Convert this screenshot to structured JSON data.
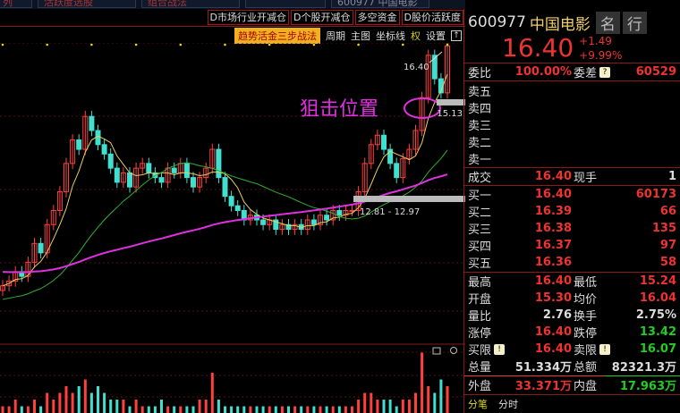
{
  "top_tabs": [
    "列",
    "活跃度选股",
    "组合战法",
    "",
    "600977 中国电影"
  ],
  "d_buttons": [
    "D市场行业开减仓",
    "D个股开减仓",
    "多空资金",
    "D股价活跃度"
  ],
  "toolbar": {
    "strategy": "趋势活金三步战法",
    "period": "周期",
    "main_chart": "主图",
    "axis": "坐标线",
    "right": "权",
    "settings": "设置",
    "expand": "↑"
  },
  "chart": {
    "annotation": "狙击位置",
    "high_label": "16.40",
    "level_label": "15.13",
    "range_label": "12.81 - 12.97",
    "closes": [
      11.3,
      11.4,
      11.6,
      11.5,
      11.8,
      12.2,
      12.0,
      12.6,
      12.9,
      13.3,
      13.9,
      14.4,
      14.2,
      14.9,
      14.6,
      14.3,
      14.1,
      13.8,
      13.5,
      13.7,
      13.4,
      13.8,
      13.9,
      13.7,
      13.6,
      13.5,
      13.8,
      13.7,
      13.9,
      13.6,
      13.4,
      13.6,
      13.8,
      14.2,
      13.6,
      13.2,
      13.0,
      12.9,
      12.7,
      12.8,
      12.7,
      12.6,
      12.7,
      12.5,
      12.6,
      12.5,
      12.6,
      12.5,
      12.7,
      12.6,
      12.8,
      12.7,
      12.9,
      12.8,
      12.9,
      12.9,
      13.3,
      13.9,
      14.3,
      14.5,
      14.2,
      13.9,
      13.6,
      14.0,
      14.2,
      14.6,
      15.3,
      16.2,
      15.7,
      15.4,
      16.4
    ],
    "volumes": [
      1,
      1,
      2,
      1,
      1,
      2,
      1,
      3,
      2,
      3,
      4,
      3,
      4,
      5,
      3,
      4,
      3,
      2,
      2,
      2,
      1,
      2,
      1,
      1,
      1,
      2,
      1,
      1,
      1,
      1,
      1,
      2,
      2,
      6,
      2,
      1,
      1,
      1,
      1,
      1,
      1,
      1,
      1,
      1,
      1,
      1,
      1,
      1,
      1,
      1,
      1,
      1,
      1,
      1,
      1,
      1,
      2,
      3,
      3,
      2,
      2,
      2,
      1,
      2,
      2,
      3,
      9,
      4,
      3,
      5,
      4
    ],
    "colors": {
      "up": "#ff4040",
      "down": "#40e0d0",
      "ma5": "#e8d060",
      "ma20": "#30b030",
      "ma60": "#e030e0"
    }
  },
  "quote": {
    "code": "600977",
    "name": "中国电影",
    "btn_name": "名",
    "btn_industry": "行",
    "price": "16.40",
    "change": "+1.49",
    "pct": "+9.99%",
    "weibi_label": "委比",
    "weibi": "100.00%",
    "weicha_label": "委差",
    "weicha": "60529",
    "asks": [
      "卖五",
      "卖四",
      "卖三",
      "卖二",
      "卖一"
    ],
    "deal_label": "成交",
    "deal": "16.40",
    "now_label": "现手",
    "now": "1",
    "bids": [
      {
        "l": "买一",
        "p": "16.40",
        "v": "60173"
      },
      {
        "l": "买二",
        "p": "16.39",
        "v": "66"
      },
      {
        "l": "买三",
        "p": "16.38",
        "v": "135"
      },
      {
        "l": "买四",
        "p": "16.37",
        "v": "97"
      },
      {
        "l": "买五",
        "p": "16.36",
        "v": "58"
      }
    ],
    "stats": [
      {
        "l1": "最高",
        "v1": "16.40",
        "l2": "最低",
        "v2": "15.24"
      },
      {
        "l1": "开盘",
        "v1": "15.30",
        "l2": "均价",
        "v2": "16.04"
      },
      {
        "l1": "量比",
        "v1": "2.76",
        "l2": "换手",
        "v2": "2.75%"
      },
      {
        "l1": "涨停",
        "v1": "16.40",
        "l2": "跌停",
        "v2": "13.42"
      },
      {
        "l1": "买限",
        "v1": "16.40",
        "l2": "卖限",
        "v2": "16.07"
      },
      {
        "l1": "总量",
        "v1": "51.334万",
        "l2": "总额",
        "v2": "82321.3万"
      }
    ],
    "outer_label": "外盘",
    "outer": "33.371万",
    "inner_label": "内盘",
    "inner": "17.963万",
    "tab_trades": "分笔",
    "tab_minute": "分时"
  }
}
